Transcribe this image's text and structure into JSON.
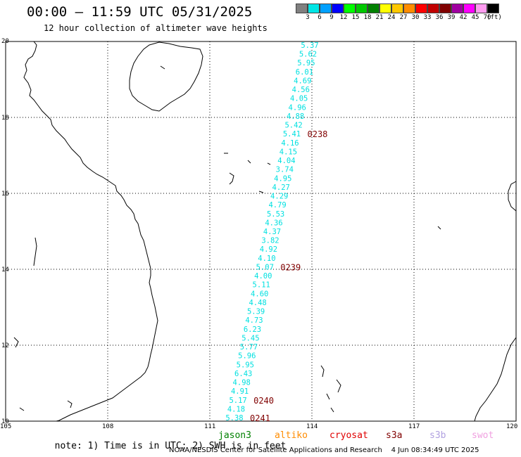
{
  "header": {
    "title": "00:00 – 11:59 UTC 05/31/2025",
    "subtitle": "12 hour collection of altimeter wave heights"
  },
  "legend": {
    "colors": [
      "#808080",
      "#00e5e5",
      "#00a0ff",
      "#0000ff",
      "#00ff00",
      "#00c800",
      "#008000",
      "#ffff00",
      "#ffc800",
      "#ff8c00",
      "#ff0000",
      "#c00000",
      "#800000",
      "#a000a0",
      "#ff00ff",
      "#ff9cf0",
      "#000000"
    ],
    "labels": [
      "3",
      "6",
      "9",
      "12",
      "15",
      "18",
      "21",
      "24",
      "27",
      "30",
      "33",
      "36",
      "39",
      "42",
      "45",
      "70"
    ],
    "unit": "(ft)"
  },
  "map": {
    "lat_labels": [
      "20",
      "18",
      "16",
      "14",
      "12",
      "10"
    ],
    "lon_labels": [
      "105",
      "108",
      "111",
      "114",
      "117",
      "120"
    ],
    "track_color": "#00e0e0",
    "time_label_color": "#800000",
    "swh": [
      "5.37",
      "5.62",
      "5.95",
      "6.01",
      "4.69",
      "4.56",
      "4.05",
      "4.96",
      "4.88",
      "5.42",
      "5.41",
      "4.16",
      "4.15",
      "4.04",
      "3.74",
      "4.95",
      "4.27",
      "4.29",
      "4.79",
      "5.53",
      "4.36",
      "4.37",
      "3.82",
      "4.92",
      "4.10",
      "5.07",
      "4.00",
      "5.11",
      "4.60",
      "4.48",
      "5.39",
      "4.73",
      "6.23",
      "5.45",
      "5.77",
      "5.96",
      "5.95",
      "6.43",
      "4.98",
      "4.91",
      "5.17",
      "4.18",
      "5.38"
    ],
    "time_labels": [
      "0238",
      "0239",
      "0240",
      "0241"
    ]
  },
  "footnote": {
    "note": "note: 1) Time is in UTC; 2) SWH is in feet",
    "satellites": [
      {
        "name": "jason3",
        "color": "#008000"
      },
      {
        "name": "altiko",
        "color": "#ff8c00"
      },
      {
        "name": "cryosat",
        "color": "#e00000"
      },
      {
        "name": "s3a",
        "color": "#800000"
      },
      {
        "name": "s3b",
        "color": "#b0a0e0"
      },
      {
        "name": "swot",
        "color": "#f0a0e0"
      }
    ]
  },
  "credit": "NOAA/NESDIS Center for Satellite Applications and Research    4 Jun 08:34:49 UTC 2025"
}
